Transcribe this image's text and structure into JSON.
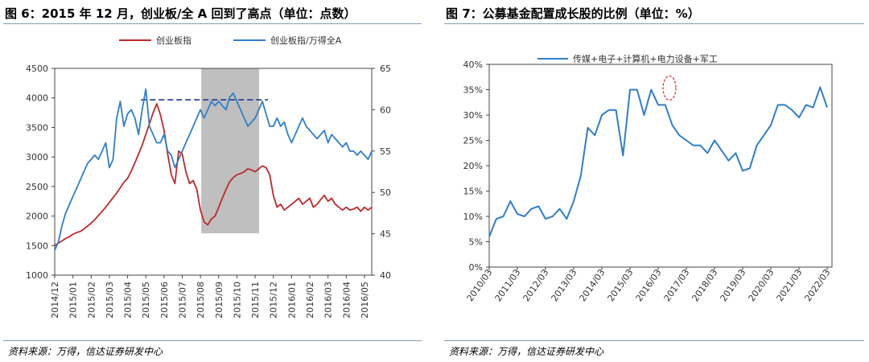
{
  "figures": {
    "left": {
      "title": "图 6：2015 年 12 月，创业板/全 A 回到了高点（单位：点数）",
      "source": "资料来源：万得，信达证券研发中心"
    },
    "right": {
      "title": "图 7：公募基金配置成长股的比例（单位：%）",
      "source": "资料来源：万得，信达证券研发中心"
    }
  },
  "colors": {
    "red_series": "#c0282a",
    "blue_series": "#2e7fcb",
    "shade": "#bfbfbf",
    "dashed": "#1f3a8f",
    "circle": "#e03030",
    "rule": "#7f9fbf"
  },
  "chart_data": [
    {
      "type": "line",
      "title": "",
      "x_tick_labels": [
        "2014/12",
        "2015/01",
        "2015/02",
        "2015/03",
        "2015/04",
        "2015/05",
        "2015/06",
        "2015/07",
        "2015/08",
        "2015/09",
        "2015/10",
        "2015/11",
        "2015/12",
        "2016/01",
        "2016/02",
        "2016/03",
        "2016/04",
        "2016/05"
      ],
      "y_left": {
        "ticks": [
          "1000",
          "1500",
          "2000",
          "2500",
          "3000",
          "3500",
          "4000",
          "4500"
        ],
        "range": [
          1000,
          4500
        ]
      },
      "y_right": {
        "ticks": [
          "40",
          "45",
          "50",
          "55",
          "60",
          "65"
        ],
        "range": [
          40,
          65
        ]
      },
      "shaded_region": {
        "from": "2015/08",
        "to": "2015/11"
      },
      "reference_line": {
        "style": "dashed",
        "axis": "right",
        "value": 61.2,
        "from": "2015/05",
        "to": "2015/11"
      },
      "legend_position": "top",
      "series": [
        {
          "name": "创业板指",
          "axis": "left",
          "color": "#c0282a",
          "x": [
            0,
            0.2,
            0.4,
            0.6,
            0.8,
            1.0,
            1.2,
            1.4,
            1.6,
            1.8,
            2.0,
            2.2,
            2.4,
            2.6,
            2.8,
            3.0,
            3.2,
            3.4,
            3.6,
            3.8,
            4.0,
            4.2,
            4.4,
            4.6,
            4.8,
            5.0,
            5.2,
            5.4,
            5.6,
            5.8,
            6.0,
            6.2,
            6.4,
            6.6,
            6.8,
            7.0,
            7.2,
            7.4,
            7.6,
            7.8,
            8.0,
            8.2,
            8.4,
            8.6,
            8.8,
            9.0,
            9.2,
            9.4,
            9.6,
            9.8,
            10.0,
            10.2,
            10.4,
            10.6,
            10.8,
            11.0,
            11.2,
            11.4,
            11.6,
            11.8,
            12.0,
            12.2,
            12.4,
            12.6,
            12.8,
            13.0,
            13.2,
            13.4,
            13.6,
            13.8,
            14.0,
            14.2,
            14.4,
            14.6,
            14.8,
            15.0,
            15.2,
            15.4,
            15.6,
            15.8,
            16.0,
            16.2,
            16.4,
            16.6,
            16.8,
            17.0,
            17.2,
            17.4
          ],
          "values": [
            1500,
            1540,
            1580,
            1620,
            1650,
            1690,
            1720,
            1740,
            1780,
            1830,
            1880,
            1940,
            2010,
            2080,
            2150,
            2230,
            2310,
            2390,
            2480,
            2570,
            2640,
            2760,
            2900,
            3050,
            3200,
            3380,
            3560,
            3750,
            3900,
            3720,
            3450,
            3050,
            2700,
            2550,
            3100,
            3050,
            2750,
            2550,
            2600,
            2450,
            2100,
            1900,
            1850,
            1950,
            2000,
            2150,
            2300,
            2450,
            2580,
            2650,
            2700,
            2720,
            2750,
            2800,
            2780,
            2750,
            2800,
            2850,
            2820,
            2700,
            2350,
            2150,
            2200,
            2100,
            2150,
            2200,
            2250,
            2300,
            2200,
            2250,
            2300,
            2150,
            2200,
            2280,
            2350,
            2250,
            2300,
            2200,
            2150,
            2100,
            2150,
            2100,
            2120,
            2150,
            2080,
            2150,
            2100,
            2150
          ]
        },
        {
          "name": "创业板指/万得全A",
          "axis": "right",
          "color": "#2e7fcb",
          "x": [
            0,
            0.2,
            0.4,
            0.6,
            0.8,
            1.0,
            1.2,
            1.4,
            1.6,
            1.8,
            2.0,
            2.2,
            2.4,
            2.6,
            2.8,
            3.0,
            3.2,
            3.4,
            3.6,
            3.8,
            4.0,
            4.2,
            4.4,
            4.6,
            4.8,
            5.0,
            5.2,
            5.4,
            5.6,
            5.8,
            6.0,
            6.2,
            6.4,
            6.6,
            6.8,
            7.0,
            7.2,
            7.4,
            7.6,
            7.8,
            8.0,
            8.2,
            8.4,
            8.6,
            8.8,
            9.0,
            9.2,
            9.4,
            9.6,
            9.8,
            10.0,
            10.2,
            10.4,
            10.6,
            10.8,
            11.0,
            11.2,
            11.4,
            11.6,
            11.8,
            12.0,
            12.2,
            12.4,
            12.6,
            12.8,
            13.0,
            13.2,
            13.4,
            13.6,
            13.8,
            14.0,
            14.2,
            14.4,
            14.6,
            14.8,
            15.0,
            15.2,
            15.4,
            15.6,
            15.8,
            16.0,
            16.2,
            16.4,
            16.6,
            16.8,
            17.0,
            17.2,
            17.4
          ],
          "values": [
            43,
            44,
            46,
            47.5,
            48.5,
            49.5,
            50.5,
            51.5,
            52.5,
            53.5,
            54,
            54.5,
            54,
            55,
            56,
            53,
            54,
            59,
            61,
            58,
            59.5,
            60,
            59,
            57,
            60,
            62.5,
            58,
            57,
            56,
            56,
            57,
            55,
            54.5,
            53,
            54,
            55,
            56,
            57,
            58,
            59,
            60,
            59,
            60,
            61,
            60.5,
            61,
            60.5,
            60,
            61.5,
            62,
            61,
            60,
            59,
            58,
            58.5,
            59,
            60,
            61,
            59.5,
            58,
            58,
            59,
            58,
            58.5,
            57,
            56,
            57,
            58,
            59,
            58,
            57.5,
            57,
            56.5,
            57,
            57.5,
            56,
            57,
            56.5,
            56,
            55.5,
            56,
            55,
            55,
            54.5,
            55,
            54.5,
            54,
            55
          ]
        }
      ]
    },
    {
      "type": "line",
      "title": "",
      "x_tick_labels": [
        "2010/03",
        "2011/03",
        "2012/03",
        "2013/03",
        "2014/03",
        "2015/03",
        "2016/03",
        "2017/03",
        "2018/03",
        "2019/03",
        "2020/03",
        "2021/03",
        "2022/03"
      ],
      "y_axis": {
        "ticks": [
          "0%",
          "5%",
          "10%",
          "15%",
          "20%",
          "25%",
          "30%",
          "35%",
          "40%"
        ],
        "range": [
          0,
          40
        ]
      },
      "annotation": {
        "type": "circle",
        "x": 6.4,
        "y": 35
      },
      "legend_position": "top",
      "series": [
        {
          "name": "传媒+电子+计算机+电力设备+军工",
          "color": "#2e7fcb",
          "x": [
            0,
            0.25,
            0.5,
            0.75,
            1.0,
            1.25,
            1.5,
            1.75,
            2.0,
            2.25,
            2.5,
            2.75,
            3.0,
            3.25,
            3.5,
            3.75,
            4.0,
            4.25,
            4.5,
            4.75,
            5.0,
            5.25,
            5.5,
            5.75,
            6.0,
            6.25,
            6.5,
            6.75,
            7.0,
            7.25,
            7.5,
            7.75,
            8.0,
            8.25,
            8.5,
            8.75,
            9.0,
            9.25,
            9.5,
            9.75,
            10.0,
            10.25,
            10.5,
            10.75,
            11.0,
            11.25,
            11.5,
            11.75,
            12.0
          ],
          "values": [
            6,
            9.5,
            10,
            13,
            10.5,
            10,
            11.5,
            12,
            9.5,
            10,
            11.5,
            9.5,
            13,
            18,
            27.5,
            26,
            30,
            31,
            31,
            22,
            35,
            35,
            30,
            35,
            32,
            32,
            28,
            26,
            25,
            24,
            24,
            22.5,
            25,
            23,
            21,
            22.5,
            19,
            19.5,
            24,
            26,
            28,
            32,
            32,
            31,
            29.5,
            32,
            31.5,
            35.5,
            31.5
          ]
        }
      ]
    }
  ]
}
